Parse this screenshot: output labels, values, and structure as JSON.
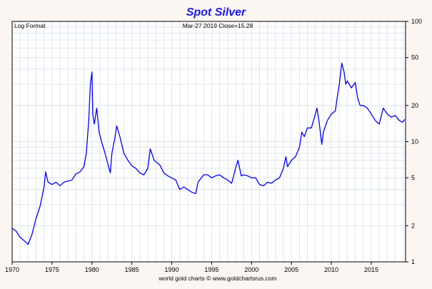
{
  "chart_data": {
    "type": "line",
    "title": "Spot Silver",
    "annotation_left": "Log Format",
    "annotation_center": "Mar-27  2019   Close=15.28",
    "credit": "world gold charts © www.goldchartsrus.com",
    "y_scale": "log",
    "ylim": [
      1,
      100
    ],
    "xlim": [
      1970,
      2019.3
    ],
    "grid": true,
    "x_ticks": [
      "1970",
      "1975",
      "1980",
      "1985",
      "1990",
      "1995",
      "2000",
      "2005",
      "2010",
      "2015"
    ],
    "y_ticks": [
      "1",
      "2",
      "5",
      "10",
      "20",
      "50",
      "100"
    ],
    "series": [
      {
        "color": "#0000ff",
        "x": [
          1970.0,
          1970.5,
          1971.0,
          1971.5,
          1972.0,
          1972.5,
          1973.0,
          1973.5,
          1974.0,
          1974.2,
          1974.5,
          1975.0,
          1975.5,
          1976.0,
          1976.5,
          1977.0,
          1977.5,
          1978.0,
          1978.5,
          1979.0,
          1979.3,
          1979.6,
          1979.8,
          1980.0,
          1980.1,
          1980.3,
          1980.6,
          1980.9,
          1981.2,
          1981.6,
          1982.0,
          1982.3,
          1982.5,
          1982.9,
          1983.1,
          1983.5,
          1984.0,
          1984.5,
          1985.0,
          1985.5,
          1986.0,
          1986.5,
          1987.0,
          1987.3,
          1987.8,
          1988.5,
          1989.0,
          1989.5,
          1990.0,
          1990.5,
          1991.0,
          1991.5,
          1992.0,
          1992.5,
          1993.0,
          1993.3,
          1994.0,
          1994.5,
          1995.0,
          1995.5,
          1996.0,
          1996.5,
          1997.0,
          1997.5,
          1998.0,
          1998.3,
          1998.7,
          1999.0,
          1999.5,
          2000.0,
          2000.5,
          2001.0,
          2001.5,
          2002.0,
          2002.5,
          2003.0,
          2003.5,
          2004.0,
          2004.3,
          2004.5,
          2005.0,
          2005.5,
          2006.0,
          2006.3,
          2006.6,
          2007.0,
          2007.5,
          2008.0,
          2008.2,
          2008.5,
          2008.8,
          2009.0,
          2009.5,
          2010.0,
          2010.5,
          2010.8,
          2011.0,
          2011.3,
          2011.6,
          2011.8,
          2012.0,
          2012.5,
          2013.0,
          2013.3,
          2013.6,
          2014.0,
          2014.5,
          2015.0,
          2015.5,
          2016.0,
          2016.5,
          2017.0,
          2017.5,
          2018.0,
          2018.5,
          2018.9,
          2019.2
        ],
        "y": [
          1.9,
          1.8,
          1.6,
          1.5,
          1.4,
          1.7,
          2.3,
          2.9,
          4.2,
          5.6,
          4.6,
          4.4,
          4.6,
          4.3,
          4.6,
          4.7,
          4.8,
          5.4,
          5.6,
          6.2,
          8.0,
          15.0,
          30.0,
          38.0,
          17.0,
          14.0,
          19.0,
          12.0,
          10.0,
          8.2,
          6.5,
          5.5,
          8.0,
          11.0,
          13.5,
          11.0,
          8.0,
          7.0,
          6.3,
          6.0,
          5.5,
          5.3,
          6.0,
          8.7,
          7.0,
          6.4,
          5.5,
          5.2,
          5.0,
          4.8,
          4.0,
          4.2,
          4.0,
          3.8,
          3.7,
          4.6,
          5.3,
          5.3,
          5.0,
          5.2,
          5.3,
          5.0,
          4.8,
          4.5,
          6.0,
          7.0,
          5.2,
          5.3,
          5.2,
          5.0,
          5.0,
          4.4,
          4.3,
          4.6,
          4.5,
          4.8,
          5.0,
          6.0,
          7.5,
          6.2,
          7.0,
          7.5,
          9.0,
          12.0,
          11.0,
          13.0,
          13.0,
          17.0,
          19.0,
          14.0,
          9.5,
          12.0,
          15.0,
          17.0,
          18.0,
          25.0,
          30.0,
          45.0,
          38.0,
          30.0,
          32.0,
          28.0,
          31.0,
          23.0,
          20.0,
          20.0,
          19.0,
          17.0,
          15.0,
          14.0,
          19.0,
          17.0,
          16.0,
          16.5,
          15.0,
          14.5,
          15.3
        ]
      }
    ]
  }
}
